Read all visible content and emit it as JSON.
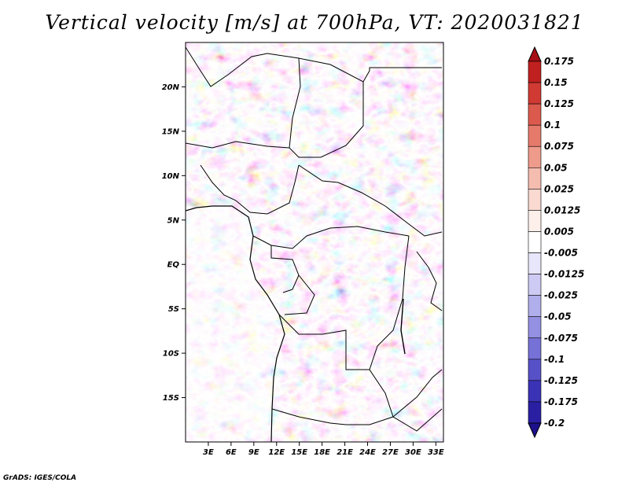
{
  "title": "Vertical velocity [m/s] at 700hPa, VT: 2020031821",
  "credit": "GrADS: IGES/COLA",
  "lat_axis": {
    "labels": [
      "20N",
      "15N",
      "10N",
      "5N",
      "EQ",
      "5S",
      "10S",
      "15S"
    ],
    "values": [
      20,
      15,
      10,
      5,
      0,
      -5,
      -10,
      -15
    ],
    "range": [
      -20,
      25
    ]
  },
  "lon_axis": {
    "labels": [
      "3E",
      "6E",
      "9E",
      "12E",
      "15E",
      "18E",
      "21E",
      "24E",
      "27E",
      "30E",
      "33E"
    ],
    "values": [
      3,
      6,
      9,
      12,
      15,
      18,
      21,
      24,
      27,
      30,
      33
    ],
    "range": [
      0,
      34
    ]
  },
  "colorbar": {
    "labels": [
      "0.175",
      "0.15",
      "0.125",
      "0.1",
      "0.075",
      "0.05",
      "0.025",
      "0.0125",
      "0.005",
      "-0.005",
      "-0.0125",
      "-0.025",
      "-0.05",
      "-0.075",
      "-0.1",
      "-0.125",
      "-0.175",
      "-0.2"
    ],
    "colors": [
      "#a50f15",
      "#c0201f",
      "#d03a33",
      "#dc5a4d",
      "#e57a6b",
      "#ee9b8c",
      "#f5bcb0",
      "#fad9d0",
      "#fdf0ea",
      "#ffffff",
      "#e7e6fa",
      "#cdcbf3",
      "#b1aeec",
      "#9490e2",
      "#7671d6",
      "#5751c8",
      "#3b33b6",
      "#2a1fa3",
      "#1c118a"
    ]
  },
  "colors": {
    "positive": "#c0201f",
    "negative": "#3b33b6",
    "neutral": "#ffffff",
    "border": "#000000"
  }
}
